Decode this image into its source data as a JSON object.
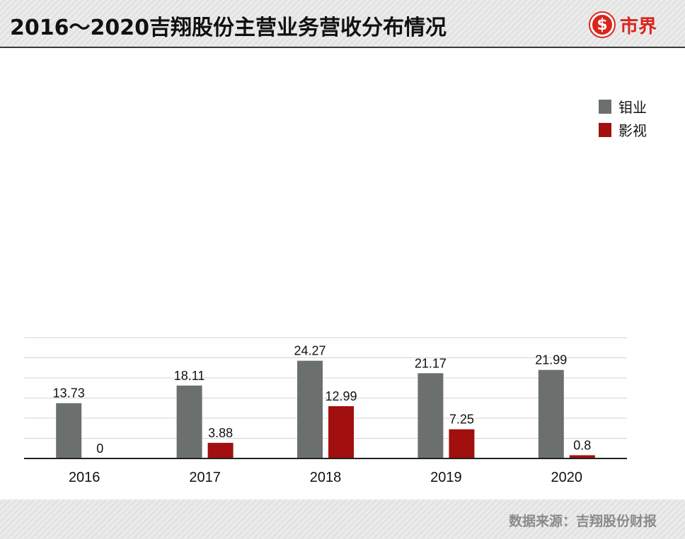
{
  "header": {
    "title": "2016～2020吉翔股份主营业务营收分布情况",
    "logo_text": "市界",
    "logo_icon": "dollar-circle-icon"
  },
  "footer": {
    "source": "数据来源：吉翔股份财报"
  },
  "colors": {
    "series_1": "#6b706e",
    "series_2": "#a10f0f",
    "brand": "#d9251c"
  },
  "chart_data": {
    "type": "bar",
    "categories": [
      "2016",
      "2017",
      "2018",
      "2019",
      "2020"
    ],
    "series": [
      {
        "name": "钼业",
        "values": [
          13.73,
          18.11,
          24.27,
          21.17,
          21.99
        ]
      },
      {
        "name": "影视",
        "values": [
          0,
          3.88,
          12.99,
          7.25,
          0.8
        ]
      }
    ],
    "title": "2016～2020吉翔股份主营业务营收分布情况",
    "xlabel": "",
    "ylabel": "",
    "ylim": [
      0,
      30
    ],
    "grid": true,
    "legend": "top-right"
  }
}
